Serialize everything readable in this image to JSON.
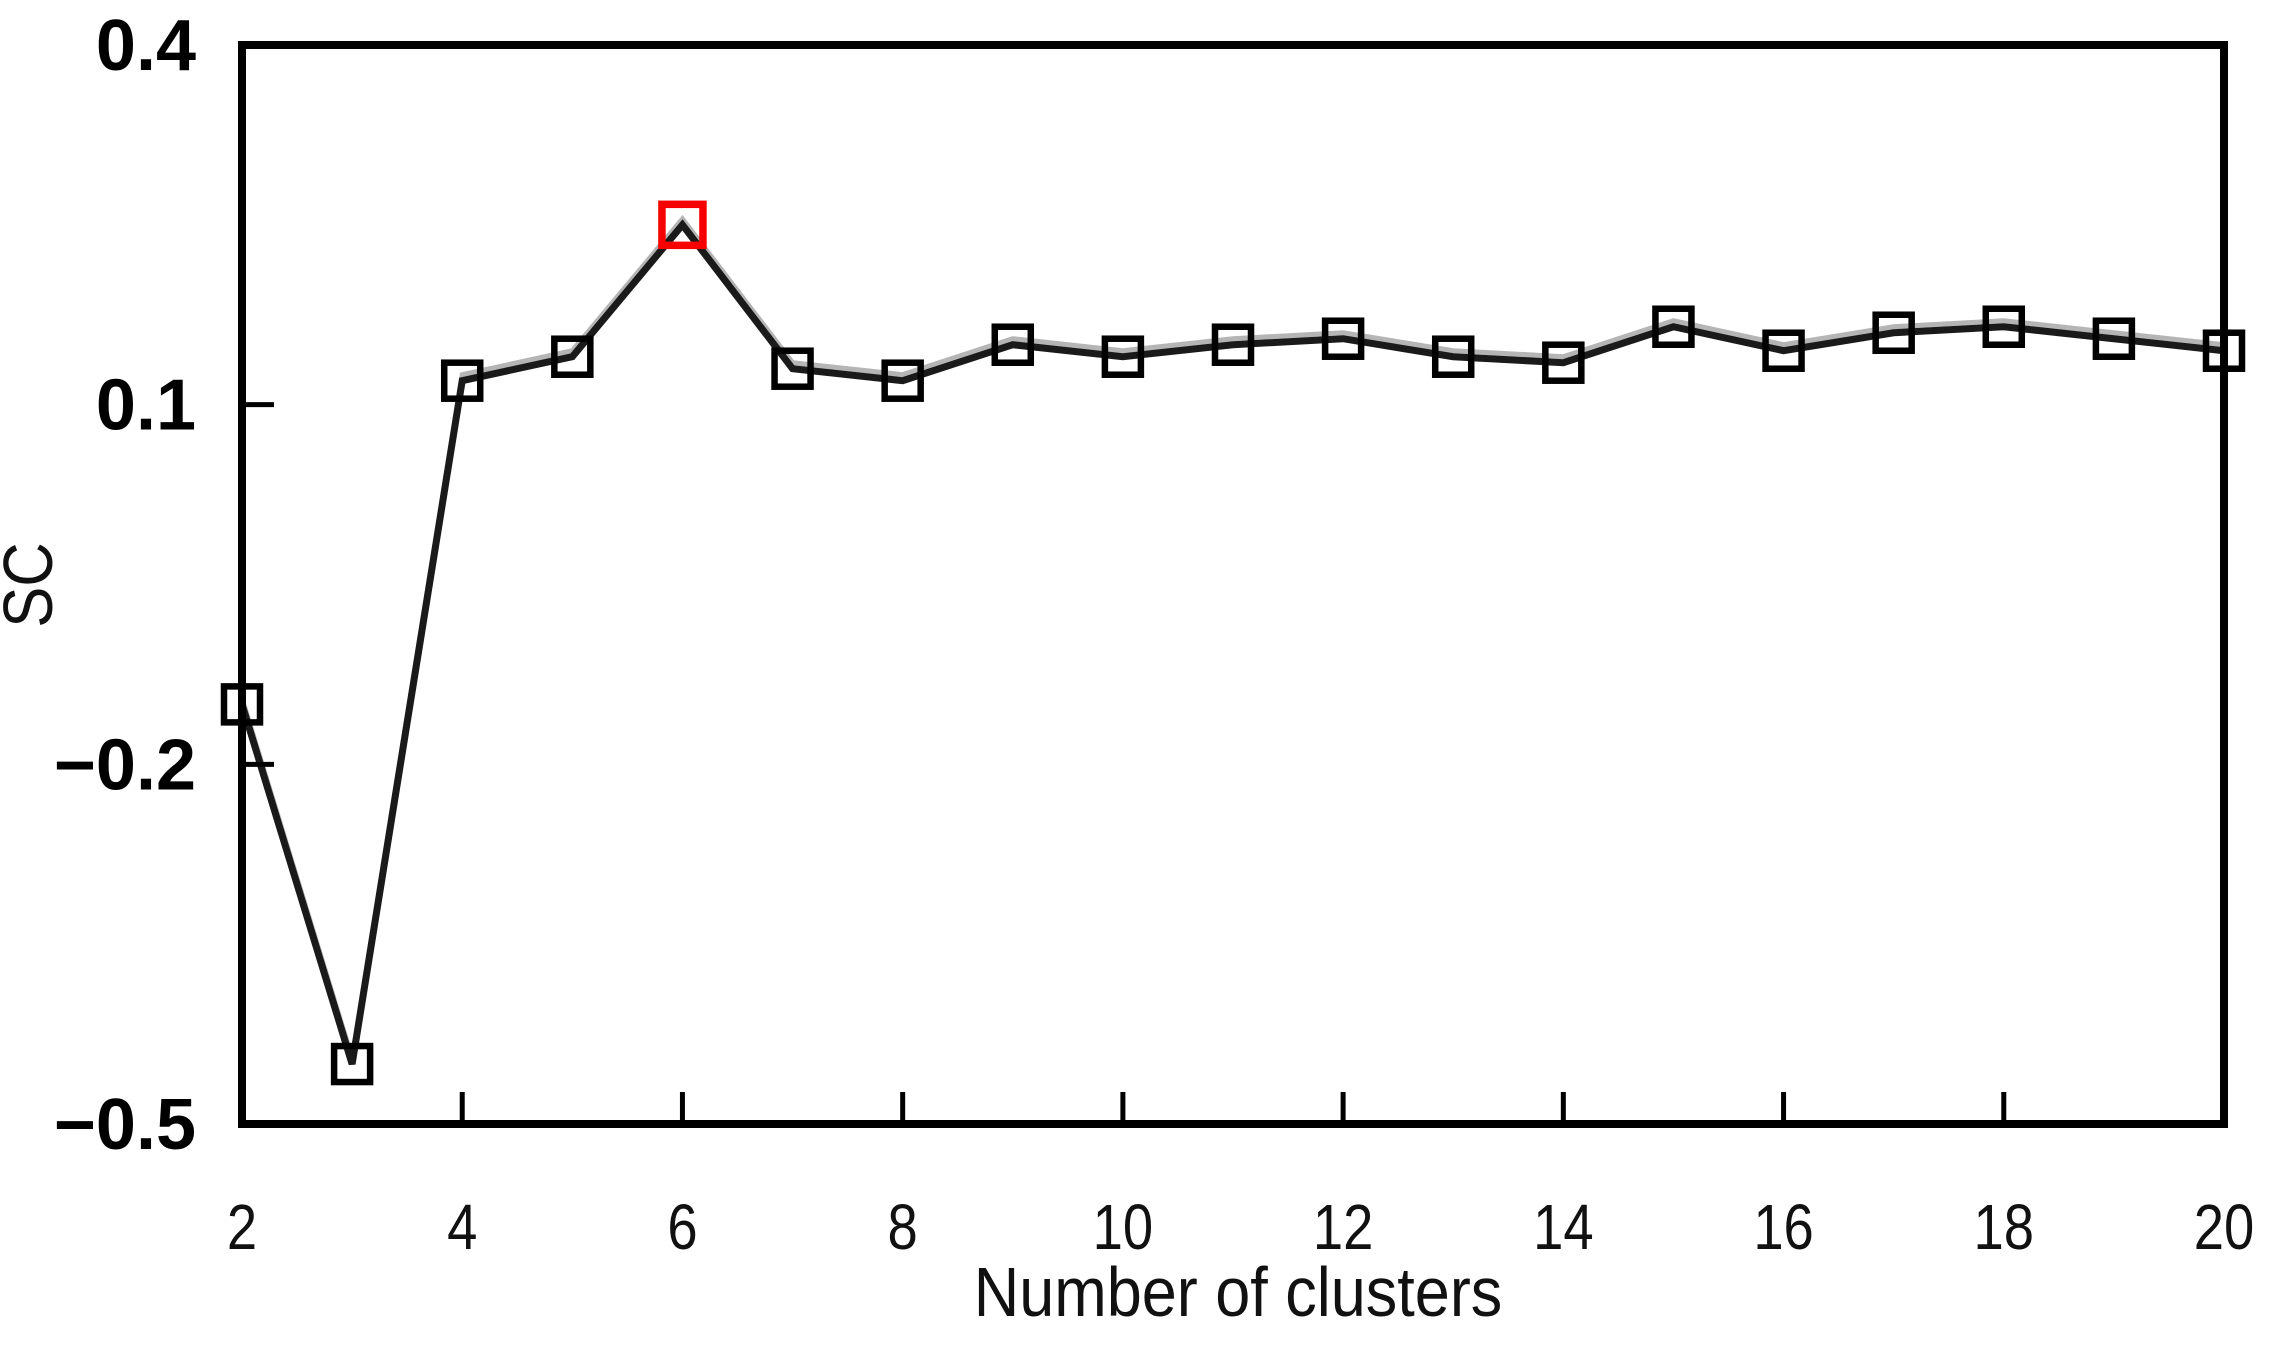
{
  "chart_data": {
    "type": "line",
    "title": "",
    "xlabel": "Number of clusters",
    "ylabel": "SC",
    "x": [
      2,
      3,
      4,
      5,
      6,
      7,
      8,
      9,
      10,
      11,
      12,
      13,
      14,
      15,
      16,
      17,
      18,
      19,
      20
    ],
    "values": [
      -0.15,
      -0.45,
      0.12,
      0.14,
      0.25,
      0.13,
      0.12,
      0.15,
      0.14,
      0.15,
      0.155,
      0.14,
      0.135,
      0.165,
      0.145,
      0.16,
      0.165,
      0.155,
      0.145
    ],
    "highlight_x": 6,
    "highlight_value": 0.25,
    "xlim": [
      2,
      20
    ],
    "ylim": [
      -0.5,
      0.4
    ],
    "xticks": [
      2,
      4,
      6,
      8,
      10,
      12,
      14,
      16,
      18,
      20
    ],
    "xtick_labels": [
      "2",
      "4",
      "6",
      "8",
      "10",
      "12",
      "14",
      "16",
      "18",
      "20"
    ],
    "yticks": [
      0.4,
      0.1,
      -0.2,
      -0.5
    ],
    "ytick_labels": [
      "0.4",
      "0.1",
      "−0.2",
      "−0.5"
    ],
    "grid": false,
    "legend": "none",
    "marker_shape": "open-square",
    "line_color": "#1a1a1a",
    "marker_color": "#000000",
    "highlight_color": "#f60000",
    "axis_color": "#000000",
    "shadow_color": "#b5b5b5",
    "background": "#ffffff"
  }
}
